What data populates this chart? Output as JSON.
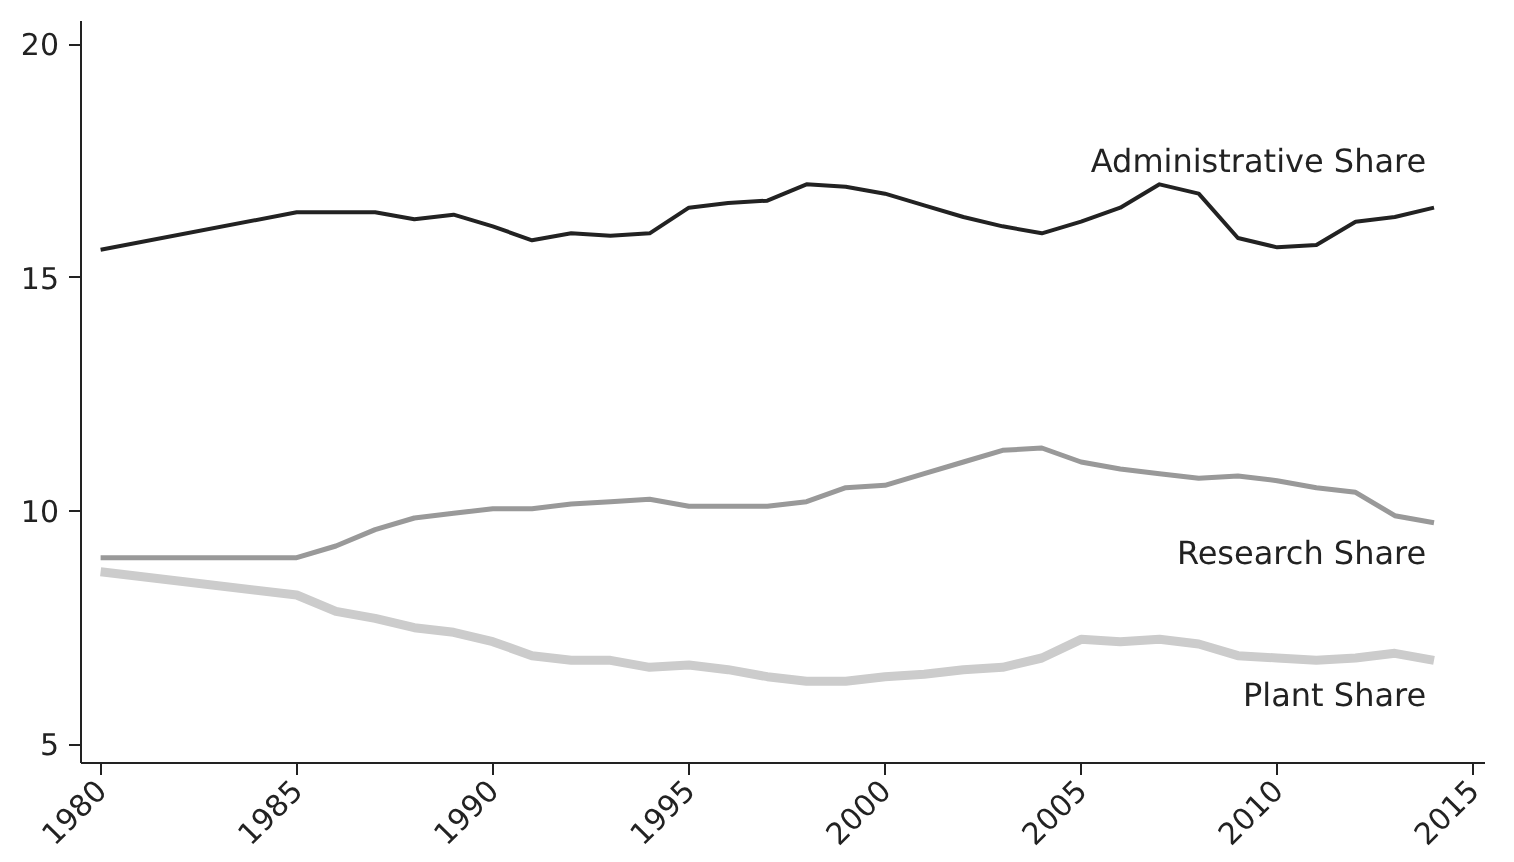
{
  "chart_data": {
    "type": "line",
    "x": [
      1980,
      1985,
      1986,
      1987,
      1988,
      1989,
      1990,
      1991,
      1992,
      1993,
      1994,
      1995,
      1996,
      1997,
      1998,
      1999,
      2000,
      2001,
      2002,
      2003,
      2004,
      2005,
      2006,
      2007,
      2008,
      2009,
      2010,
      2011,
      2012,
      2013,
      2014
    ],
    "series": [
      {
        "name": "Administrative Share",
        "color": "#222222",
        "values": [
          15.6,
          16.4,
          16.4,
          16.4,
          16.25,
          16.35,
          16.1,
          15.8,
          15.95,
          15.9,
          15.95,
          16.5,
          16.6,
          16.65,
          17.0,
          16.95,
          16.8,
          16.55,
          16.3,
          16.1,
          15.95,
          16.2,
          16.5,
          17.0,
          16.8,
          15.85,
          15.65,
          15.7,
          16.2,
          16.3,
          16.5
        ]
      },
      {
        "name": "Research Share",
        "color": "#999999",
        "values": [
          9.0,
          9.0,
          9.25,
          9.6,
          9.85,
          9.95,
          10.05,
          10.05,
          10.15,
          10.2,
          10.25,
          10.1,
          10.1,
          10.1,
          10.2,
          10.5,
          10.55,
          10.8,
          11.05,
          11.3,
          11.35,
          11.05,
          10.9,
          10.8,
          10.7,
          10.75,
          10.65,
          10.5,
          10.4,
          9.9,
          9.75
        ]
      },
      {
        "name": "Plant Share",
        "color": "#cccccc",
        "values": [
          8.7,
          8.2,
          7.85,
          7.7,
          7.5,
          7.4,
          7.2,
          6.9,
          6.8,
          6.8,
          6.65,
          6.7,
          6.6,
          6.45,
          6.35,
          6.35,
          6.45,
          6.5,
          6.6,
          6.65,
          6.85,
          7.25,
          7.2,
          7.25,
          7.15,
          6.9,
          6.85,
          6.8,
          6.85,
          6.95,
          6.8
        ]
      }
    ],
    "xlim": [
      1979.5,
      2015.3
    ],
    "ylim": [
      4.6,
      20.5
    ],
    "xticks": [
      1980,
      1985,
      1990,
      1995,
      2000,
      2005,
      2010,
      2015
    ],
    "yticks": [
      5,
      10,
      15,
      20
    ],
    "grid": false,
    "marker": "none",
    "line_style": "solid"
  }
}
